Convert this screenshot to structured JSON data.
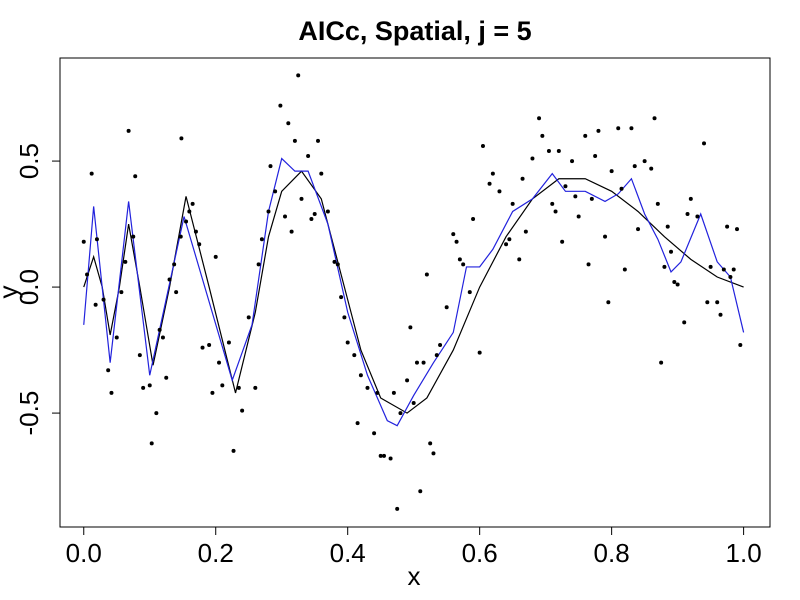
{
  "chart_data": {
    "type": "scatter",
    "title": "AICc, Spatial, j = 5",
    "xlabel": "x",
    "ylabel": "y",
    "xlim": [
      -0.036,
      1.04
    ],
    "ylim": [
      -0.952,
      0.909
    ],
    "xticks": [
      {
        "value": 0,
        "label": "0.0"
      },
      0.2,
      0.4,
      0.6,
      0.8,
      {
        "value": 1,
        "label": "1.0"
      }
    ],
    "yticks": [
      -0.5,
      {
        "value": 0,
        "label": "0.0"
      },
      0.5
    ],
    "points": {
      "color": "#000000",
      "x": [
        0.0,
        0.005,
        0.012,
        0.02,
        0.018,
        0.03,
        0.037,
        0.042,
        0.05,
        0.057,
        0.063,
        0.068,
        0.075,
        0.078,
        0.085,
        0.09,
        0.1,
        0.103,
        0.11,
        0.115,
        0.12,
        0.125,
        0.13,
        0.137,
        0.14,
        0.147,
        0.148,
        0.155,
        0.16,
        0.165,
        0.17,
        0.175,
        0.18,
        0.19,
        0.195,
        0.2,
        0.205,
        0.21,
        0.22,
        0.227,
        0.235,
        0.24,
        0.25,
        0.26,
        0.265,
        0.27,
        0.28,
        0.283,
        0.29,
        0.298,
        0.305,
        0.31,
        0.315,
        0.32,
        0.325,
        0.33,
        0.34,
        0.345,
        0.35,
        0.355,
        0.36,
        0.37,
        0.38,
        0.385,
        0.39,
        0.395,
        0.4,
        0.41,
        0.415,
        0.42,
        0.43,
        0.44,
        0.445,
        0.45,
        0.455,
        0.465,
        0.47,
        0.475,
        0.48,
        0.49,
        0.495,
        0.5,
        0.505,
        0.51,
        0.515,
        0.52,
        0.525,
        0.53,
        0.535,
        0.54,
        0.55,
        0.56,
        0.565,
        0.57,
        0.575,
        0.585,
        0.59,
        0.6,
        0.605,
        0.615,
        0.62,
        0.63,
        0.64,
        0.645,
        0.65,
        0.66,
        0.665,
        0.67,
        0.68,
        0.69,
        0.695,
        0.705,
        0.71,
        0.715,
        0.72,
        0.725,
        0.73,
        0.74,
        0.745,
        0.75,
        0.76,
        0.765,
        0.77,
        0.775,
        0.78,
        0.79,
        0.795,
        0.8,
        0.81,
        0.815,
        0.82,
        0.83,
        0.835,
        0.84,
        0.85,
        0.86,
        0.865,
        0.87,
        0.875,
        0.88,
        0.885,
        0.89,
        0.895,
        0.9,
        0.91,
        0.915,
        0.92,
        0.93,
        0.94,
        0.945,
        0.95,
        0.96,
        0.965,
        0.97,
        0.975,
        0.98,
        0.985,
        0.99,
        0.995
      ],
      "values": [
        0.18,
        0.05,
        0.45,
        0.19,
        -0.07,
        -0.05,
        -0.33,
        -0.42,
        -0.2,
        -0.02,
        0.1,
        0.62,
        0.2,
        0.44,
        -0.27,
        -0.4,
        -0.39,
        -0.62,
        -0.5,
        -0.17,
        -0.2,
        -0.36,
        0.03,
        0.09,
        -0.02,
        0.2,
        0.59,
        0.26,
        0.3,
        0.33,
        0.22,
        0.17,
        -0.24,
        -0.23,
        -0.42,
        0.12,
        -0.3,
        -0.39,
        -0.22,
        -0.65,
        -0.4,
        -0.49,
        -0.12,
        -0.4,
        0.09,
        0.19,
        0.3,
        0.48,
        0.38,
        0.72,
        0.28,
        0.65,
        0.22,
        0.58,
        0.84,
        0.35,
        0.52,
        0.27,
        0.29,
        0.58,
        0.45,
        0.3,
        0.1,
        0.09,
        -0.04,
        -0.12,
        -0.22,
        -0.27,
        -0.54,
        -0.35,
        -0.4,
        -0.58,
        -0.42,
        -0.67,
        -0.67,
        -0.68,
        -0.42,
        -0.88,
        -0.5,
        -0.37,
        -0.16,
        -0.46,
        -0.3,
        -0.81,
        -0.3,
        0.05,
        -0.62,
        -0.66,
        -0.27,
        -0.23,
        -0.08,
        0.21,
        0.18,
        0.11,
        0.09,
        -0.02,
        0.27,
        -0.26,
        0.56,
        0.41,
        0.45,
        0.38,
        0.17,
        0.19,
        0.33,
        0.11,
        0.43,
        0.22,
        0.51,
        0.67,
        0.6,
        0.54,
        0.33,
        0.3,
        0.54,
        0.18,
        0.4,
        0.5,
        0.36,
        0.28,
        0.6,
        0.09,
        0.35,
        0.52,
        0.62,
        0.2,
        -0.06,
        0.46,
        0.63,
        0.39,
        0.07,
        0.63,
        0.48,
        0.23,
        0.5,
        0.47,
        0.67,
        0.33,
        -0.3,
        0.08,
        0.24,
        0.14,
        0.02,
        0.01,
        -0.14,
        0.29,
        0.35,
        0.28,
        0.57,
        -0.06,
        0.08,
        -0.06,
        -0.11,
        0.07,
        0.24,
        0.04,
        0.07,
        0.23,
        -0.23
      ]
    },
    "lines": [
      {
        "color": "#000000",
        "x": [
          0,
          0.015,
          0.028,
          0.04,
          0.054,
          0.068,
          0.085,
          0.105,
          0.13,
          0.155,
          0.19,
          0.23,
          0.26,
          0.28,
          0.3,
          0.33,
          0.36,
          0.39,
          0.42,
          0.45,
          0.49,
          0.52,
          0.56,
          0.6,
          0.64,
          0.68,
          0.72,
          0.76,
          0.8,
          0.84,
          0.88,
          0.92,
          0.96,
          1.0
        ],
        "values": [
          0,
          0.12,
          0.0,
          -0.19,
          0.0,
          0.25,
          0.0,
          -0.31,
          0.0,
          0.36,
          0.0,
          -0.42,
          -0.1,
          0.2,
          0.38,
          0.46,
          0.35,
          0.05,
          -0.25,
          -0.44,
          -0.5,
          -0.44,
          -0.25,
          0.0,
          0.2,
          0.35,
          0.43,
          0.43,
          0.38,
          0.3,
          0.2,
          0.11,
          0.04,
          0.0
        ]
      },
      {
        "color": "#2222dd",
        "x": [
          0,
          0.015,
          0.04,
          0.068,
          0.1,
          0.152,
          0.225,
          0.255,
          0.28,
          0.3,
          0.32,
          0.34,
          0.37,
          0.4,
          0.43,
          0.46,
          0.475,
          0.5,
          0.53,
          0.56,
          0.58,
          0.6,
          0.62,
          0.65,
          0.68,
          0.71,
          0.73,
          0.76,
          0.79,
          0.81,
          0.83,
          0.85,
          0.87,
          0.89,
          0.905,
          0.935,
          0.96,
          0.98,
          1.0
        ],
        "values": [
          -0.15,
          0.32,
          -0.3,
          0.34,
          -0.35,
          0.28,
          -0.37,
          -0.15,
          0.3,
          0.51,
          0.46,
          0.46,
          0.25,
          -0.1,
          -0.35,
          -0.53,
          -0.55,
          -0.43,
          -0.3,
          -0.18,
          0.08,
          0.08,
          0.15,
          0.3,
          0.35,
          0.45,
          0.38,
          0.38,
          0.34,
          0.37,
          0.43,
          0.29,
          0.19,
          0.06,
          0.1,
          0.29,
          0.1,
          0.04,
          -0.18
        ]
      }
    ]
  }
}
